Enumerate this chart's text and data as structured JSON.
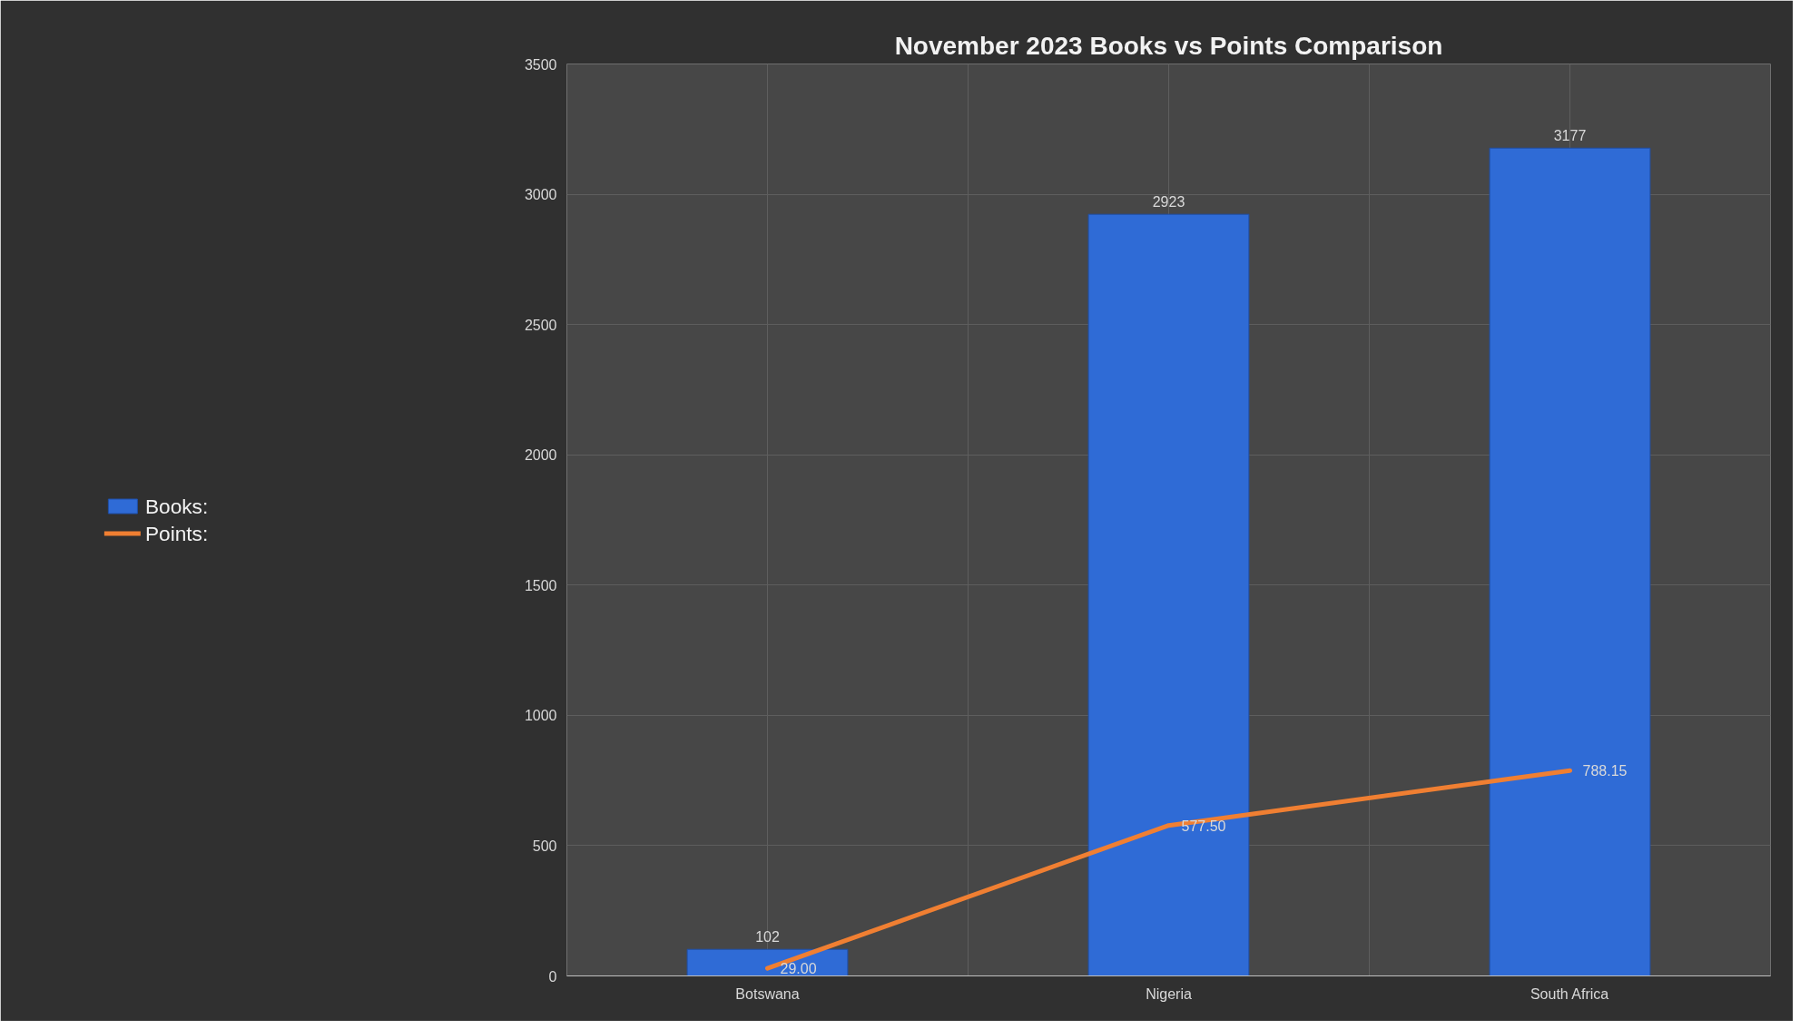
{
  "chart_data": {
    "type": "bar",
    "title": "November 2023 Books vs Points Comparison",
    "categories": [
      "Botswana",
      "Nigeria",
      "South Africa"
    ],
    "series": [
      {
        "name": "Books:",
        "color": "#2f6bd6",
        "values": [
          102,
          2923,
          3177
        ]
      },
      {
        "name": "Points:",
        "type": "line",
        "color": "#f07f32",
        "values": [
          29,
          577.5,
          788.15
        ],
        "value_labels": [
          "29.00",
          "577.50",
          "788.15"
        ]
      }
    ],
    "ylim": [
      0,
      3500
    ],
    "yticks": [
      0,
      500,
      1000,
      1500,
      2000,
      2500,
      3000,
      3500
    ],
    "grid": true,
    "legend": "left",
    "data_labels": true,
    "marker": "none",
    "line_style": "solid"
  }
}
